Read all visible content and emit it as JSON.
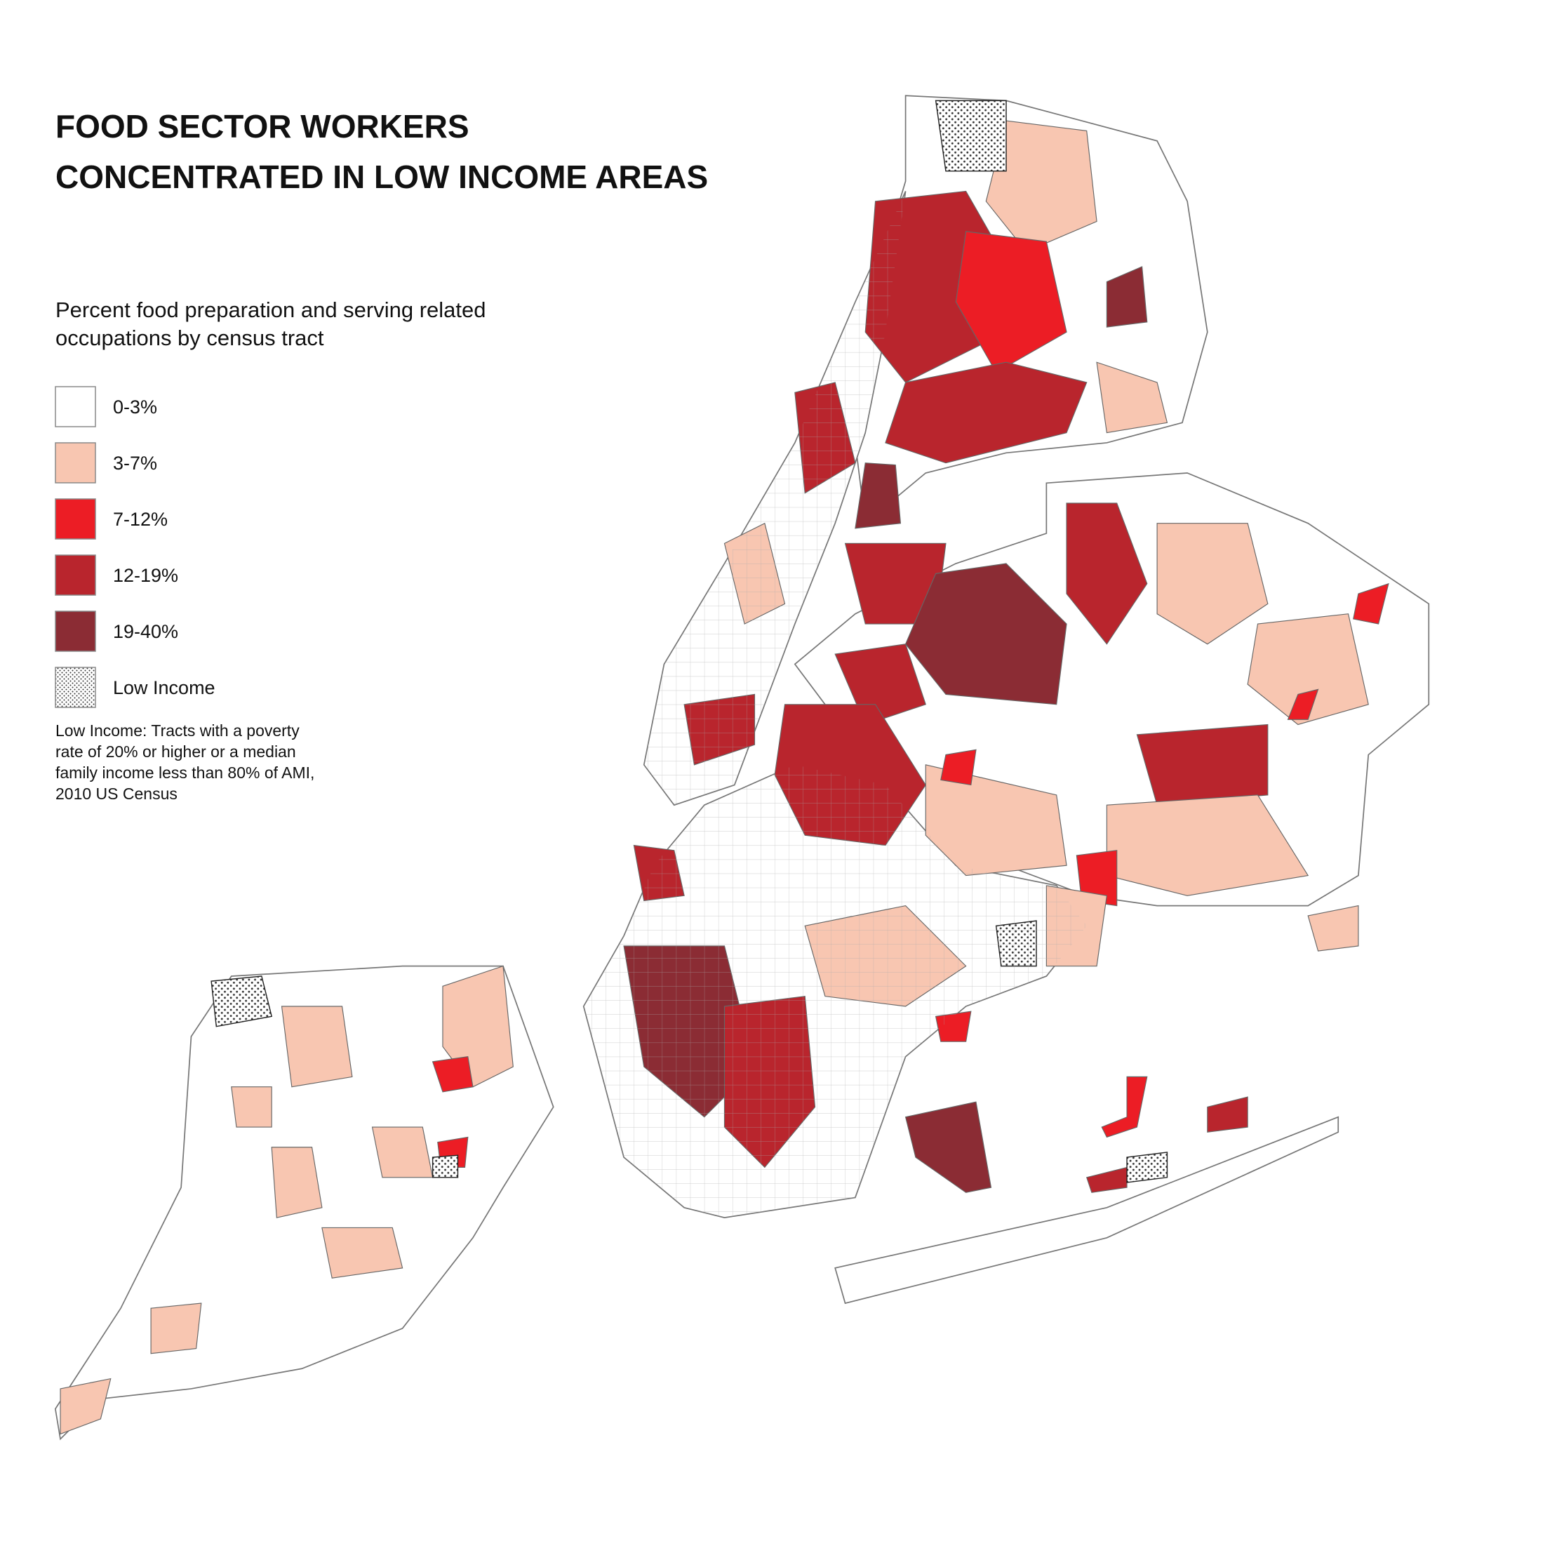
{
  "header": {
    "title": [
      "FOOD SECTOR WORKERS",
      "CONCENTRATED IN LOW INCOME AREAS"
    ],
    "subtitle": [
      "Percent food preparation and serving related",
      "occupations by census tract"
    ]
  },
  "legend": {
    "items": [
      {
        "label": "0-3%",
        "color": "#ffffff"
      },
      {
        "label": "3-7%",
        "color": "#f8c6b1"
      },
      {
        "label": "7-12%",
        "color": "#ec1d25"
      },
      {
        "label": "12-19%",
        "color": "#b9252d"
      },
      {
        "label": "19-40%",
        "color": "#8b2c34"
      },
      {
        "label": "Low Income"
      }
    ],
    "note": [
      "Low Income: Tracts with a poverty",
      "rate of 20% or higher or a median",
      "family income less than 80% of AMI,",
      "2010 US Census"
    ]
  }
}
